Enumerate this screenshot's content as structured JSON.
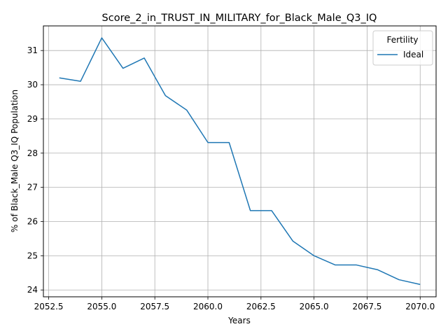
{
  "chart_data": {
    "type": "line",
    "title": "Score_2_in_TRUST_IN_MILITARY_for_Black_Male_Q3_IQ",
    "xlabel": "Years",
    "ylabel": "% of Black_Male Q3_IQ Population",
    "xlim": [
      2052.25,
      2070.75
    ],
    "ylim": [
      23.8,
      31.72
    ],
    "x_ticks": [
      2052.5,
      2055.0,
      2057.5,
      2060.0,
      2062.5,
      2065.0,
      2067.5,
      2070.0
    ],
    "x_tick_labels": [
      "2052.5",
      "2055.0",
      "2057.5",
      "2060.0",
      "2062.5",
      "2065.0",
      "2067.5",
      "2070.0"
    ],
    "y_ticks": [
      24,
      25,
      26,
      27,
      28,
      29,
      30,
      31
    ],
    "y_tick_labels": [
      "24",
      "25",
      "26",
      "27",
      "28",
      "29",
      "30",
      "31"
    ],
    "grid": true,
    "legend": {
      "title": "Fertility",
      "placement": "top-right"
    },
    "series": [
      {
        "name": "Ideal",
        "color": "#1f77b4",
        "x": [
          2053,
          2054,
          2055,
          2056,
          2057,
          2058,
          2059,
          2060,
          2061,
          2062,
          2063,
          2064,
          2065,
          2066,
          2067,
          2068,
          2069,
          2070
        ],
        "y": [
          30.2,
          30.1,
          31.37,
          30.48,
          30.78,
          29.68,
          29.26,
          28.31,
          28.31,
          26.32,
          26.32,
          25.43,
          25.0,
          24.73,
          24.73,
          24.59,
          24.3,
          24.16
        ]
      }
    ]
  }
}
